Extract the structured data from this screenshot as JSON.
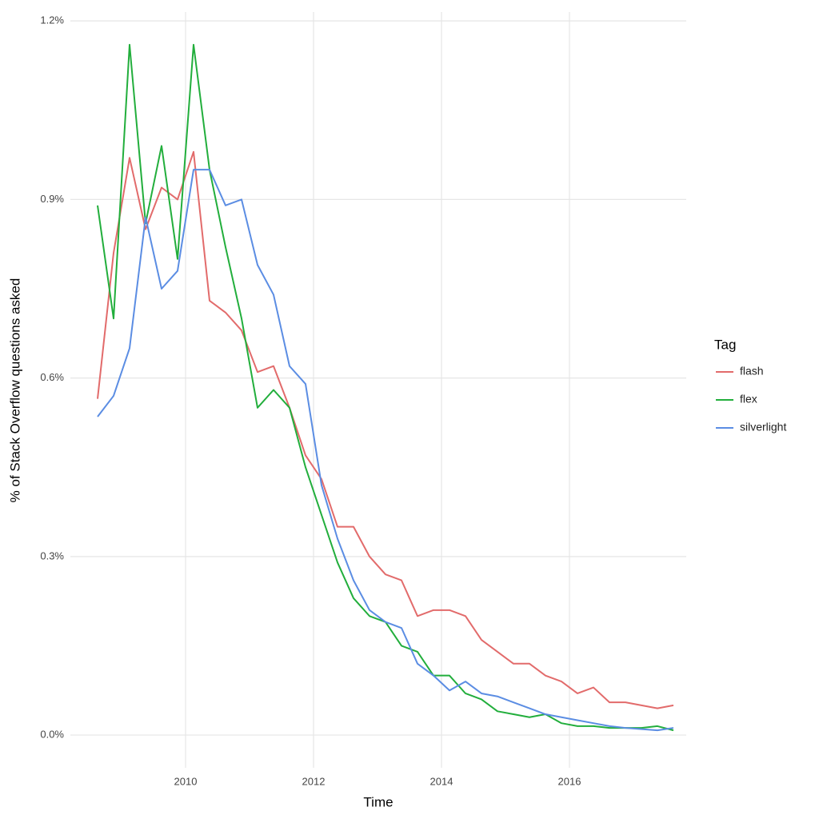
{
  "chart_data": {
    "type": "line",
    "x_label": "Time",
    "y_label": "% of Stack Overflow questions asked",
    "legend_title": "Tag",
    "legend": "right",
    "grid": true,
    "x": [
      2008.625,
      2008.875,
      2009.125,
      2009.375,
      2009.625,
      2009.875,
      2010.125,
      2010.375,
      2010.625,
      2010.875,
      2011.125,
      2011.375,
      2011.625,
      2011.875,
      2012.125,
      2012.375,
      2012.625,
      2012.875,
      2013.125,
      2013.375,
      2013.625,
      2013.875,
      2014.125,
      2014.375,
      2014.625,
      2014.875,
      2015.125,
      2015.375,
      2015.625,
      2015.875,
      2016.125,
      2016.375,
      2016.625,
      2016.875,
      2017.125,
      2017.375,
      2017.625
    ],
    "series": [
      {
        "name": "flash",
        "color": "#e26b6b",
        "values": [
          0.565,
          0.81,
          0.97,
          0.85,
          0.92,
          0.9,
          0.98,
          0.73,
          0.71,
          0.68,
          0.61,
          0.62,
          0.55,
          0.47,
          0.43,
          0.35,
          0.35,
          0.3,
          0.27,
          0.26,
          0.2,
          0.21,
          0.21,
          0.2,
          0.16,
          0.14,
          0.12,
          0.12,
          0.1,
          0.09,
          0.07,
          0.08,
          0.055,
          0.055,
          0.05,
          0.045,
          0.05
        ]
      },
      {
        "name": "flex",
        "color": "#22ae3c",
        "values": [
          0.89,
          0.7,
          1.16,
          0.86,
          0.99,
          0.8,
          1.16,
          0.95,
          0.82,
          0.7,
          0.55,
          0.58,
          0.55,
          0.45,
          0.37,
          0.29,
          0.23,
          0.2,
          0.19,
          0.15,
          0.14,
          0.1,
          0.1,
          0.07,
          0.06,
          0.04,
          0.035,
          0.03,
          0.035,
          0.02,
          0.015,
          0.015,
          0.012,
          0.012,
          0.012,
          0.015,
          0.008
        ]
      },
      {
        "name": "silverlight",
        "color": "#5b8de3",
        "values": [
          0.535,
          0.57,
          0.65,
          0.87,
          0.75,
          0.78,
          0.95,
          0.95,
          0.89,
          0.9,
          0.79,
          0.74,
          0.62,
          0.59,
          0.42,
          0.33,
          0.26,
          0.21,
          0.19,
          0.18,
          0.12,
          0.1,
          0.075,
          0.09,
          0.07,
          0.065,
          0.055,
          0.045,
          0.035,
          0.03,
          0.025,
          0.02,
          0.015,
          0.012,
          0.01,
          0.008,
          0.012
        ]
      }
    ],
    "xlim": [
      2008.2,
      2017.825
    ],
    "xticks": [
      2010,
      2012,
      2014,
      2016
    ],
    "ylim": [
      -0.055,
      1.215
    ],
    "yticks": [
      {
        "value": 0,
        "label": "0.0%"
      },
      {
        "value": 0.3,
        "label": "0.3%"
      },
      {
        "value": 0.6,
        "label": "0.6%"
      },
      {
        "value": 0.9,
        "label": "0.9%"
      },
      {
        "value": 1.2,
        "label": "1.2%"
      }
    ]
  }
}
